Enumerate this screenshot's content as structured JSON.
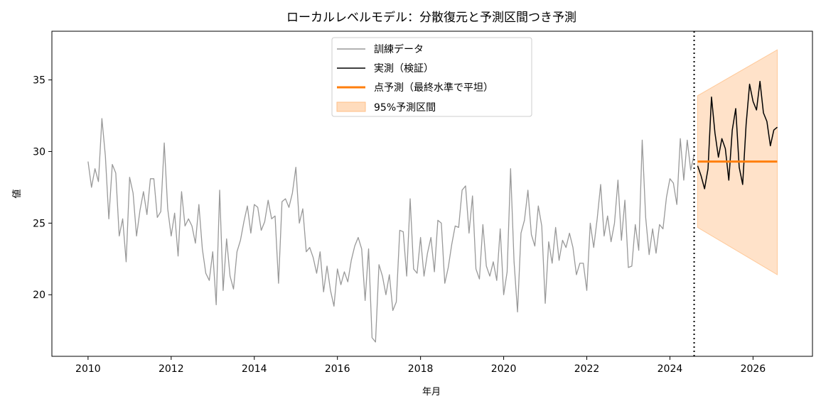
{
  "chart_data": {
    "type": "line",
    "title": "ローカルレベルモデル：分散復元と予測区間つき予測",
    "xlabel": "年月",
    "ylabel": "値",
    "xlim": [
      2009.13,
      2027.43
    ],
    "ylim": [
      15.7,
      38.4
    ],
    "x_ticks": [
      2010,
      2012,
      2014,
      2016,
      2018,
      2020,
      2022,
      2024,
      2026
    ],
    "y_ticks": [
      20,
      25,
      30,
      35
    ],
    "grid": false,
    "legend_position": "upper-center",
    "split_line_x": 2024.583,
    "series": [
      {
        "name": "訓練データ",
        "color": "#999999",
        "x_start": 2010.0,
        "x_step_months": 1,
        "values": [
          29.3,
          27.5,
          28.8,
          27.9,
          32.3,
          29.7,
          25.3,
          29.1,
          28.5,
          24.1,
          25.3,
          22.3,
          28.2,
          27.1,
          24.1,
          25.9,
          27.2,
          25.6,
          28.1,
          28.1,
          25.4,
          25.8,
          30.6,
          26.0,
          24.1,
          25.7,
          22.7,
          27.2,
          24.8,
          25.3,
          24.8,
          23.6,
          26.3,
          23.2,
          21.5,
          21.0,
          23.0,
          19.3,
          27.3,
          20.3,
          23.9,
          21.3,
          20.4,
          23.0,
          23.8,
          25.1,
          26.2,
          24.3,
          26.3,
          26.1,
          24.5,
          25.1,
          26.6,
          25.3,
          25.5,
          20.8,
          26.5,
          26.7,
          26.1,
          27.1,
          28.9,
          25.0,
          26.0,
          23.0,
          23.3,
          22.6,
          21.5,
          23.0,
          20.2,
          22.0,
          20.3,
          19.2,
          21.8,
          20.7,
          21.6,
          20.9,
          22.4,
          23.4,
          24.0,
          23.2,
          19.6,
          23.2,
          17.0,
          16.7,
          22.1,
          21.3,
          20.0,
          21.4,
          18.9,
          19.5,
          24.5,
          24.4,
          21.3,
          26.7,
          21.8,
          21.5,
          24.0,
          21.3,
          22.9,
          24.0,
          21.6,
          25.2,
          25.0,
          20.8,
          21.9,
          23.5,
          24.8,
          24.7,
          27.3,
          27.6,
          24.3,
          26.9,
          21.8,
          21.1,
          24.9,
          22.0,
          21.3,
          22.3,
          21.0,
          24.6,
          20.0,
          21.6,
          28.8,
          22.3,
          18.8,
          24.3,
          25.2,
          27.3,
          24.2,
          23.4,
          26.2,
          24.8,
          19.4,
          23.7,
          22.2,
          24.7,
          22.4,
          23.8,
          23.3,
          24.3,
          23.3,
          21.4,
          22.2,
          22.2,
          20.3,
          25.0,
          23.3,
          25.3,
          27.7,
          24.1,
          25.5,
          23.7,
          25.0,
          28.0,
          23.8,
          26.6,
          21.9,
          22.0,
          24.9,
          23.1,
          30.8,
          25.4,
          22.8,
          24.6,
          22.9,
          24.9,
          24.6,
          26.8,
          28.1,
          27.8,
          26.3,
          30.9,
          28.0,
          30.8,
          28.7,
          29.8
        ]
      },
      {
        "name": "実測（検証）",
        "color": "#000000",
        "x_start": 2024.667,
        "x_step_months": 1,
        "values": [
          29.0,
          28.3,
          27.4,
          28.8,
          33.8,
          31.3,
          29.6,
          30.9,
          30.2,
          28.0,
          31.5,
          33.0,
          28.9,
          27.7,
          31.9,
          34.7,
          33.5,
          32.9,
          34.9,
          32.7,
          32.1,
          30.4,
          31.5,
          31.7
        ]
      },
      {
        "name": "点予測（最終水準で平坦）",
        "color": "#ff7f0e",
        "x_start": 2024.667,
        "x_end": 2026.583,
        "value": 29.3
      },
      {
        "name": "95%予測区間",
        "color": "#ffbf87",
        "x_start": 2024.667,
        "x_end": 2026.583,
        "lower_start": 24.7,
        "lower_end": 21.4,
        "upper_start": 33.9,
        "upper_end": 37.1
      }
    ]
  }
}
